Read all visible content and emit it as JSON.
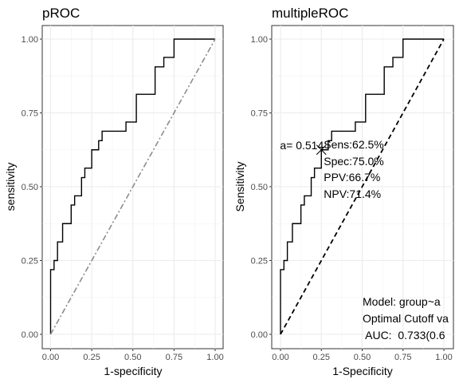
{
  "chart_data": [
    {
      "type": "line",
      "title": "pROC",
      "xlabel": "1-specificity",
      "ylabel": "sensitivity",
      "xlim": [
        0,
        1
      ],
      "ylim": [
        0,
        1
      ],
      "xticks": [
        "0.00",
        "0.25",
        "0.50",
        "0.75",
        "1.00"
      ],
      "yticks": [
        "0.00",
        "0.25",
        "0.50",
        "0.75",
        "1.00"
      ],
      "grid": true,
      "series": [
        {
          "style": "step",
          "color": "#000000",
          "points": [
            [
              0,
              0
            ],
            [
              0,
              0.219
            ],
            [
              0.021,
              0.219
            ],
            [
              0.021,
              0.25
            ],
            [
              0.042,
              0.25
            ],
            [
              0.042,
              0.313
            ],
            [
              0.073,
              0.313
            ],
            [
              0.073,
              0.375
            ],
            [
              0.125,
              0.375
            ],
            [
              0.125,
              0.438
            ],
            [
              0.146,
              0.438
            ],
            [
              0.146,
              0.469
            ],
            [
              0.188,
              0.469
            ],
            [
              0.188,
              0.531
            ],
            [
              0.208,
              0.531
            ],
            [
              0.208,
              0.563
            ],
            [
              0.25,
              0.563
            ],
            [
              0.25,
              0.625
            ],
            [
              0.292,
              0.625
            ],
            [
              0.292,
              0.656
            ],
            [
              0.313,
              0.656
            ],
            [
              0.313,
              0.688
            ],
            [
              0.458,
              0.688
            ],
            [
              0.458,
              0.719
            ],
            [
              0.521,
              0.719
            ],
            [
              0.521,
              0.813
            ],
            [
              0.635,
              0.813
            ],
            [
              0.635,
              0.906
            ],
            [
              0.688,
              0.906
            ],
            [
              0.688,
              0.938
            ],
            [
              0.75,
              0.938
            ],
            [
              0.75,
              1.0
            ],
            [
              1.0,
              1.0
            ]
          ]
        },
        {
          "style": "dot-dash",
          "color": "#8c8c8c",
          "points": [
            [
              0,
              0
            ],
            [
              1,
              1
            ]
          ]
        }
      ]
    },
    {
      "type": "line",
      "title": "multipleROC",
      "xlabel": "1-Specificity",
      "ylabel": "Sensitivity",
      "xlim": [
        0,
        1
      ],
      "ylim": [
        0,
        1
      ],
      "xticks": [
        "0.00",
        "0.25",
        "0.50",
        "0.75",
        "1.00"
      ],
      "yticks": [
        "0.00",
        "0.25",
        "0.50",
        "0.75",
        "1.00"
      ],
      "grid": true,
      "series": [
        {
          "style": "step",
          "color": "#000000",
          "points": [
            [
              0,
              0
            ],
            [
              0,
              0.219
            ],
            [
              0.021,
              0.219
            ],
            [
              0.021,
              0.25
            ],
            [
              0.042,
              0.25
            ],
            [
              0.042,
              0.313
            ],
            [
              0.073,
              0.313
            ],
            [
              0.073,
              0.375
            ],
            [
              0.125,
              0.375
            ],
            [
              0.125,
              0.438
            ],
            [
              0.146,
              0.438
            ],
            [
              0.146,
              0.469
            ],
            [
              0.188,
              0.469
            ],
            [
              0.188,
              0.531
            ],
            [
              0.208,
              0.531
            ],
            [
              0.208,
              0.563
            ],
            [
              0.25,
              0.563
            ],
            [
              0.25,
              0.625
            ],
            [
              0.292,
              0.625
            ],
            [
              0.292,
              0.656
            ],
            [
              0.313,
              0.656
            ],
            [
              0.313,
              0.688
            ],
            [
              0.458,
              0.688
            ],
            [
              0.458,
              0.719
            ],
            [
              0.521,
              0.719
            ],
            [
              0.521,
              0.813
            ],
            [
              0.635,
              0.813
            ],
            [
              0.635,
              0.906
            ],
            [
              0.688,
              0.906
            ],
            [
              0.688,
              0.938
            ],
            [
              0.75,
              0.938
            ],
            [
              0.75,
              1.0
            ],
            [
              1.0,
              1.0
            ]
          ]
        },
        {
          "style": "dashed",
          "color": "#000000",
          "points": [
            [
              0,
              0
            ],
            [
              1,
              1
            ]
          ]
        }
      ],
      "cutoff_point": {
        "x": 0.25,
        "y": 0.625
      },
      "annotations": {
        "cutoff_label": "a= 0.514",
        "sens": "Sens:62.5%",
        "spec": "Spec:75.0%",
        "ppv": "PPV:66.7%",
        "npv": "NPV:71.4%",
        "model": "Model: group~a",
        "optimal": "Optimal Cutoff va",
        "auc": " AUC:  0.733(0.6"
      }
    }
  ]
}
